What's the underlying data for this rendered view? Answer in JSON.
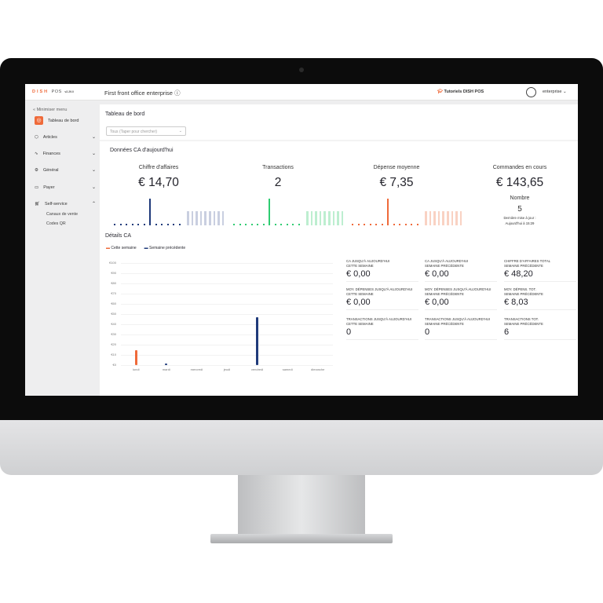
{
  "topbar": {
    "logo": "DISH",
    "logo_suffix": "POS",
    "version": "v2.29.0",
    "title": "First front office enterprise",
    "tutorials": "Tutoriels DISH POS",
    "account": "enterprise"
  },
  "sidebar": {
    "minimize": "« Minimiser menu",
    "items": [
      {
        "label": "Tableau de bord",
        "icon": "dashboard-icon",
        "active": true
      },
      {
        "label": "Articles",
        "icon": "box-icon"
      },
      {
        "label": "Finances",
        "icon": "pulse-icon"
      },
      {
        "label": "Général",
        "icon": "gear-icon"
      },
      {
        "label": "Payer",
        "icon": "card-icon"
      },
      {
        "label": "Self-service",
        "icon": "cart-icon",
        "expanded": true
      }
    ],
    "subitems": [
      "Canaux de vente",
      "Codes QR"
    ]
  },
  "page": {
    "title": "Tableau de bord",
    "filter_placeholder": "Tous (Taper pour chercher)",
    "section_today": "Données CA d'aujourd'hui",
    "section_details": "Détails CA"
  },
  "kpis": [
    {
      "title": "Chiffre d'affaires",
      "value": "€ 14,70",
      "color": "#1f3a7a",
      "faded": "#c9cfe0",
      "dots": 12,
      "peak": 6,
      "bars": 9
    },
    {
      "title": "Transactions",
      "value": "2",
      "color": "#2ecc71",
      "faded": "#bdeed0",
      "dots": 12,
      "peak": 6,
      "bars": 9
    },
    {
      "title": "Dépense moyenne",
      "value": "€ 7,35",
      "color": "#ef6a3a",
      "faded": "#f9d2c3",
      "dots": 12,
      "peak": 6,
      "bars": 9
    }
  ],
  "orders": {
    "title": "Commandes en cours",
    "value": "€ 143,65",
    "count_label": "Nombre",
    "count": "5",
    "updated_label": "Dernière mise à jour :",
    "updated": "Aujourd'hui à 15:29"
  },
  "stats": [
    {
      "label": "CA jusqu'à aujourd'hui",
      "sub": "Cette semaine",
      "value": "€ 0,00"
    },
    {
      "label": "CA jusqu'à aujourd'hui",
      "sub": "Semaine précédente",
      "value": "€ 0,00"
    },
    {
      "label": "Chiffre d'affaires total",
      "sub": "Semaine précédente",
      "value": "€ 48,20"
    },
    {
      "label": "Moy. dépenses jusqu'à aujourd'hui",
      "sub": "Cette semaine",
      "value": "€ 0,00"
    },
    {
      "label": "Moy. dépenses jusqu'à aujourd'hui",
      "sub": "Semaine précédente",
      "value": "€ 0,00"
    },
    {
      "label": "Moy. dépens. tot.",
      "sub": "Semaine précédente",
      "value": "€ 8,03"
    },
    {
      "label": "Transactions jusqu'à aujourd'hui",
      "sub": "Cette semaine",
      "value": "0"
    },
    {
      "label": "Transactions jusqu'à aujourd'hui",
      "sub": "Semaine précédente",
      "value": "0"
    },
    {
      "label": "Transactions tot.",
      "sub": "Semaine précédente",
      "value": "6"
    }
  ],
  "chart_data": {
    "type": "bar",
    "categories": [
      "lundi",
      "mardi",
      "mercredi",
      "jeudi",
      "vendredi",
      "samedi",
      "dimanche"
    ],
    "series": [
      {
        "name": "Cette semaine",
        "color": "#ef6a3a",
        "values": [
          14.7,
          0,
          0,
          0,
          0,
          0,
          0
        ]
      },
      {
        "name": "Semaine précédente",
        "color": "#1f3a7a",
        "values": [
          0,
          1.5,
          0,
          0,
          46.7,
          0,
          0
        ]
      }
    ],
    "yticks": [
      "€0",
      "€10",
      "€20",
      "€30",
      "€40",
      "€50",
      "€60",
      "€70",
      "€80",
      "€90",
      "€100"
    ],
    "ylim": [
      0,
      100
    ],
    "grid": true,
    "legend": "top-left"
  }
}
